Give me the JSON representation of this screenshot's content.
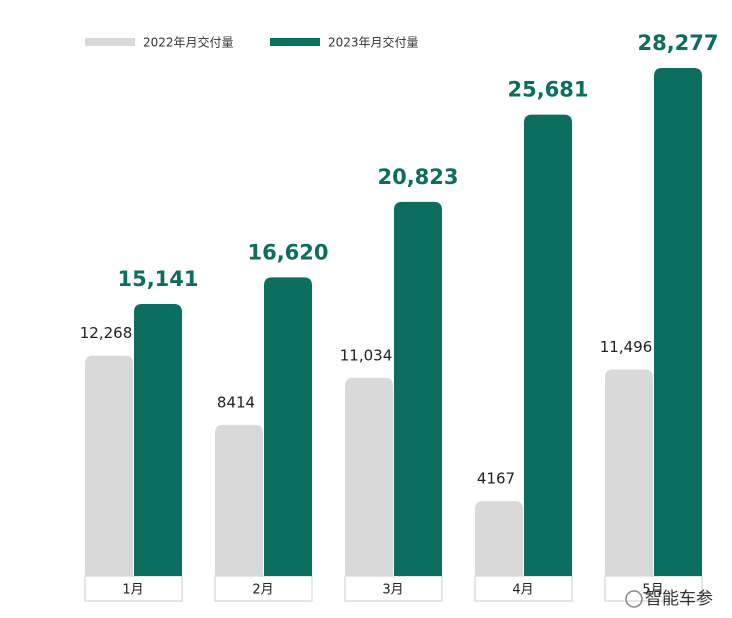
{
  "chart_data": {
    "type": "bar",
    "categories": [
      "1月",
      "2月",
      "3月",
      "4月",
      "5月"
    ],
    "series": [
      {
        "name": "2022年月交付量",
        "color": "#d9d9d9",
        "values": [
          12268,
          8414,
          11034,
          4167,
          11496
        ],
        "value_labels": [
          "12,268",
          "8414",
          "11,034",
          "4167",
          "11,496"
        ]
      },
      {
        "name": "2023年月交付量",
        "color": "#0b6e5e",
        "values": [
          15141,
          16620,
          20823,
          25681,
          28277
        ],
        "value_labels": [
          "15,141",
          "16,620",
          "20,823",
          "25,681",
          "28,277"
        ]
      }
    ]
  },
  "watermark": "智能车参"
}
